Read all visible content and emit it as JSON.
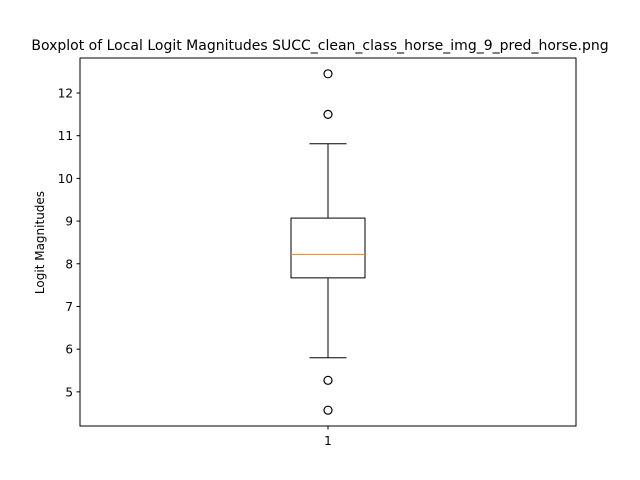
{
  "chart_data": {
    "type": "boxplot",
    "title": "Boxplot of Local Logit Magnitudes SUCC_clean_class_horse_img_9_pred_horse.png",
    "xlabel": "",
    "ylabel": "Logit Magnitudes",
    "categories": [
      "1"
    ],
    "ylim": [
      4.2,
      12.82
    ],
    "yticks": [
      5,
      6,
      7,
      8,
      9,
      10,
      11,
      12
    ],
    "grid": false,
    "boxes": [
      {
        "label": "1",
        "whisker_low": 5.8,
        "q1": 7.67,
        "median": 8.22,
        "q3": 9.07,
        "whisker_high": 10.81,
        "outliers": [
          12.45,
          11.5,
          5.27,
          4.57
        ]
      }
    ],
    "colors": {
      "box": "#000000",
      "median": "#ff7f0e",
      "outlier": "#000000"
    }
  }
}
